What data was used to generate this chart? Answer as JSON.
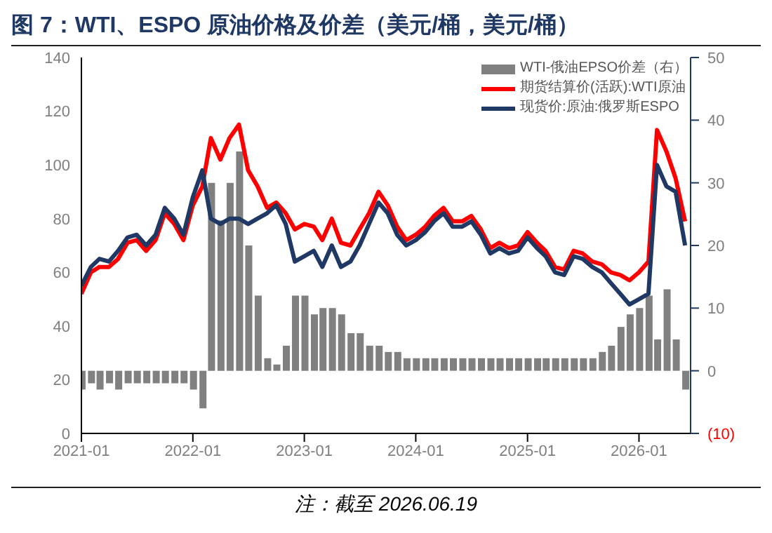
{
  "chart_data": {
    "type": "line",
    "title": "图 7：WTI、ESPO 原油价格及价差（美元/桶，美元/桶）",
    "annotations": [
      "注：截至 2026.06.19"
    ],
    "x": [
      "2021-01",
      "2021-02",
      "2021-03",
      "2021-04",
      "2021-05",
      "2021-06",
      "2021-07",
      "2021-08",
      "2021-09",
      "2021-10",
      "2021-11",
      "2021-12",
      "2022-01",
      "2022-02",
      "2022-03",
      "2022-04",
      "2022-05",
      "2022-06",
      "2022-07",
      "2022-08",
      "2022-09",
      "2022-10",
      "2022-11",
      "2022-12",
      "2023-01",
      "2023-02",
      "2023-03",
      "2023-04",
      "2023-05",
      "2023-06",
      "2023-07",
      "2023-08",
      "2023-09",
      "2023-10",
      "2023-11",
      "2023-12",
      "2024-01",
      "2024-02",
      "2024-03",
      "2024-04",
      "2024-05",
      "2024-06",
      "2024-07",
      "2024-08",
      "2024-09",
      "2024-10",
      "2024-11",
      "2024-12",
      "2025-01",
      "2025-02",
      "2025-03",
      "2025-04",
      "2025-05",
      "2025-06",
      "2025-07",
      "2025-08",
      "2025-09",
      "2025-10",
      "2025-11",
      "2025-12",
      "2026-01",
      "2026-02",
      "2026-03",
      "2026-04",
      "2026-05",
      "2026-06"
    ],
    "series": [
      {
        "name": "WTI-俄油EPSO价差（右）",
        "type": "bar",
        "axis": "y2",
        "color": "#808080",
        "values": [
          -3,
          -2,
          -3,
          -2,
          -3,
          -2,
          -2,
          -2,
          -2,
          -2,
          -2,
          -2,
          -3,
          -6,
          30,
          24,
          30,
          35,
          20,
          12,
          2,
          1,
          4,
          12,
          12,
          9,
          10,
          10,
          9,
          6,
          6,
          4,
          4,
          3,
          3,
          2,
          2,
          2,
          2,
          2,
          2,
          2,
          2,
          2,
          2,
          2,
          2,
          2,
          2,
          2,
          2,
          2,
          2,
          2,
          2,
          2,
          3,
          4,
          7,
          9,
          10,
          12,
          5,
          13,
          5,
          -3
        ]
      },
      {
        "name": "期货结算价(活跃):WTI原油",
        "color": "#ff0000",
        "values": [
          52,
          60,
          62,
          62,
          65,
          71,
          72,
          68,
          72,
          82,
          78,
          72,
          85,
          92,
          110,
          102,
          110,
          115,
          98,
          92,
          84,
          86,
          82,
          76,
          78,
          77,
          72,
          80,
          71,
          70,
          76,
          82,
          90,
          85,
          77,
          72,
          74,
          77,
          81,
          84,
          79,
          79,
          81,
          76,
          69,
          71,
          69,
          70,
          75,
          71,
          68,
          62,
          61,
          68,
          67,
          64,
          63,
          60,
          59,
          57,
          60,
          64,
          113,
          105,
          95,
          79
        ]
      },
      {
        "name": "现货价:原油:俄罗斯ESPO",
        "color": "#1f3864",
        "values": [
          55,
          62,
          65,
          64,
          68,
          73,
          74,
          70,
          74,
          84,
          80,
          74,
          88,
          98,
          80,
          78,
          80,
          80,
          78,
          80,
          82,
          85,
          78,
          64,
          66,
          68,
          62,
          70,
          62,
          64,
          70,
          78,
          86,
          82,
          74,
          70,
          72,
          75,
          79,
          82,
          77,
          77,
          79,
          74,
          67,
          69,
          67,
          68,
          73,
          69,
          66,
          60,
          59,
          66,
          65,
          62,
          60,
          56,
          52,
          48,
          50,
          52,
          100,
          92,
          90,
          70
        ]
      }
    ],
    "xlim": [
      "2021-01",
      "2026-06-19"
    ],
    "xticks": [
      "2021-01",
      "2022-01",
      "2023-01",
      "2024-01",
      "2025-01",
      "2026-01"
    ],
    "ylim": [
      0,
      140
    ],
    "yticks": [
      0,
      20,
      40,
      60,
      80,
      100,
      120,
      140
    ],
    "y2lim": [
      -10,
      50
    ],
    "y2ticks": [
      {
        "value": -10,
        "label": "(10)"
      },
      0,
      10,
      20,
      30,
      40,
      50
    ],
    "legend": "top right",
    "grid": false,
    "marker": "none",
    "line_style": "solid"
  }
}
